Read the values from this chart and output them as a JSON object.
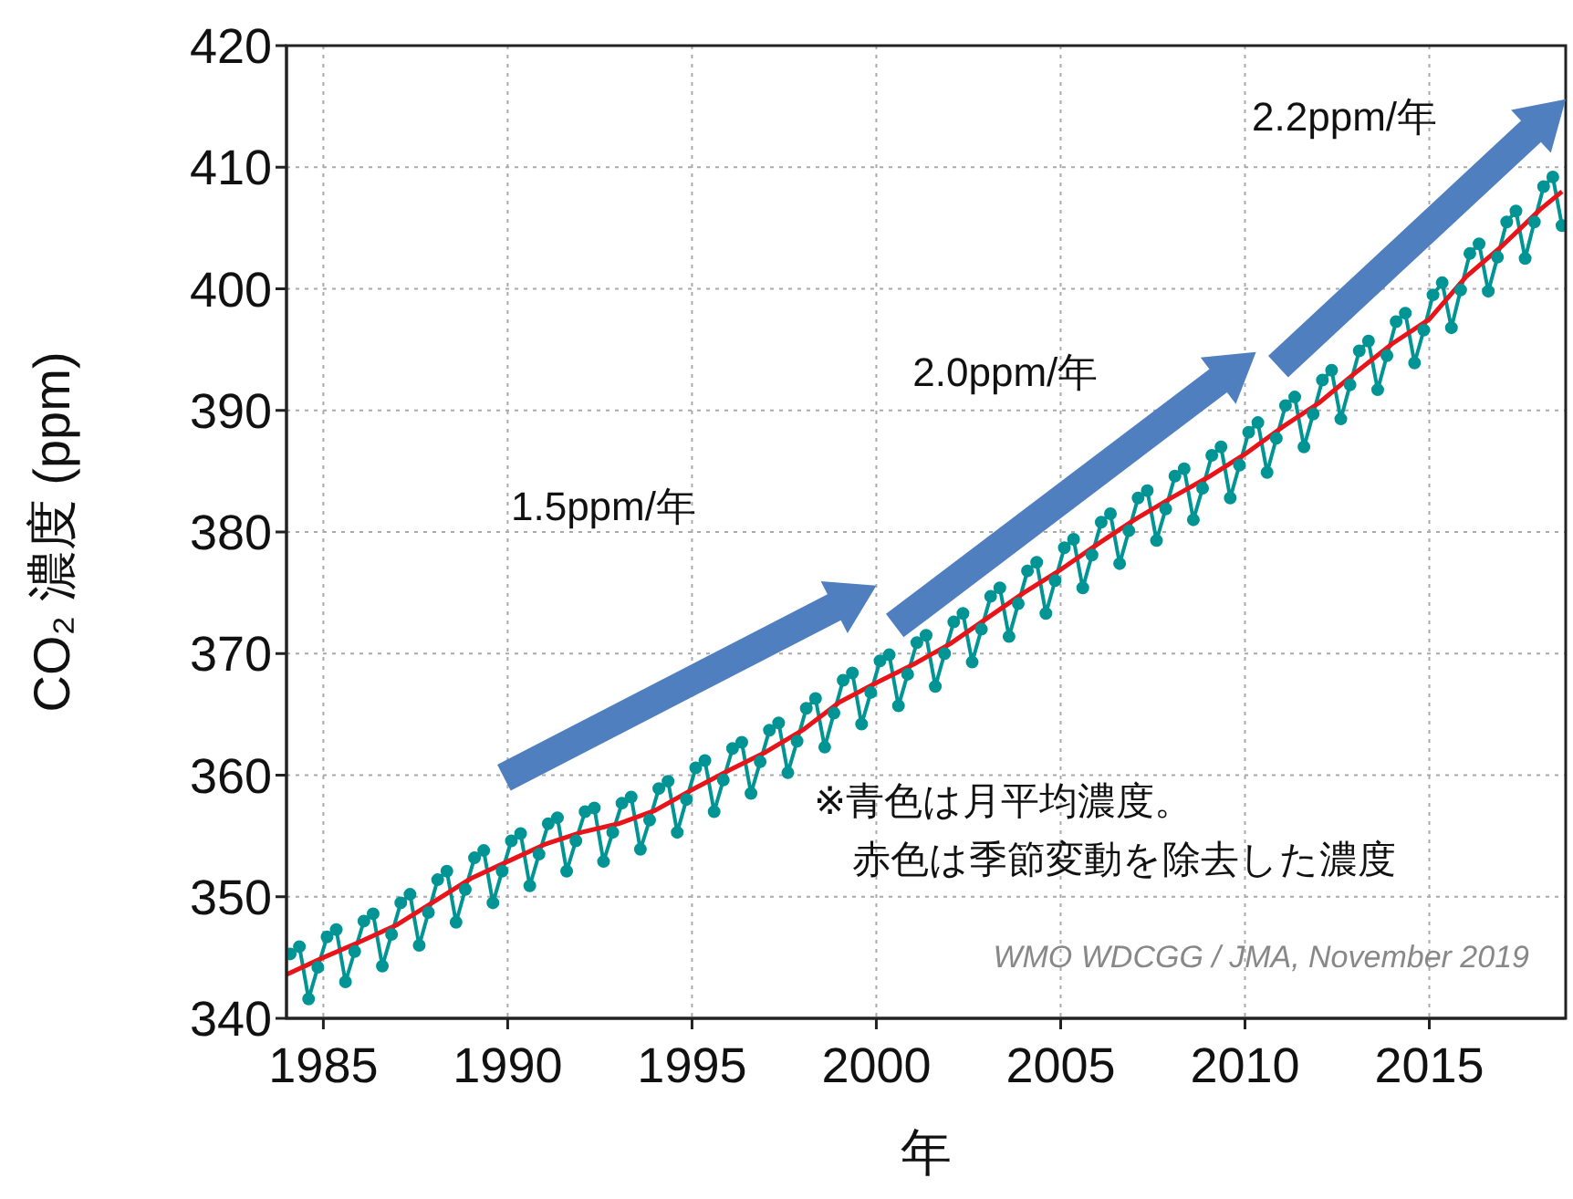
{
  "chart_data": {
    "type": "line",
    "xlabel": "年",
    "ylabel": "CO₂ 濃度 (ppm)",
    "xlim": [
      1984,
      2018.7
    ],
    "xticks": [
      1985,
      1990,
      1995,
      2000,
      2005,
      2010,
      2015
    ],
    "ylim": [
      340,
      420
    ],
    "yticks": [
      340,
      350,
      360,
      370,
      380,
      390,
      400,
      410,
      420
    ],
    "grid": true,
    "legend": false,
    "annotations": [
      "1.5ppm/年",
      "2.0ppm/年",
      "2.2ppm/年",
      "※青色は月平均濃度。",
      "赤色は季節変動を除去した濃度",
      "WMO WDCGG / JMA, November 2019"
    ],
    "series": [
      {
        "color": "#009494",
        "marker": "circle",
        "x": [
          1984.1,
          1984.35,
          1984.6,
          1984.85,
          1985.1,
          1985.35,
          1985.6,
          1985.85,
          1986.1,
          1986.35,
          1986.6,
          1986.85,
          1987.1,
          1987.35,
          1987.6,
          1987.85,
          1988.1,
          1988.35,
          1988.6,
          1988.85,
          1989.1,
          1989.35,
          1989.6,
          1989.85,
          1990.1,
          1990.35,
          1990.6,
          1990.85,
          1991.1,
          1991.35,
          1991.6,
          1991.85,
          1992.1,
          1992.35,
          1992.6,
          1992.85,
          1993.1,
          1993.35,
          1993.6,
          1993.85,
          1994.1,
          1994.35,
          1994.6,
          1994.85,
          1995.1,
          1995.35,
          1995.6,
          1995.85,
          1996.1,
          1996.35,
          1996.6,
          1996.85,
          1997.1,
          1997.35,
          1997.6,
          1997.85,
          1998.1,
          1998.35,
          1998.6,
          1998.85,
          1999.1,
          1999.35,
          1999.6,
          1999.85,
          2000.1,
          2000.35,
          2000.6,
          2000.85,
          2001.1,
          2001.35,
          2001.6,
          2001.85,
          2002.1,
          2002.35,
          2002.6,
          2002.85,
          2003.1,
          2003.35,
          2003.6,
          2003.85,
          2004.1,
          2004.35,
          2004.6,
          2004.85,
          2005.1,
          2005.35,
          2005.6,
          2005.85,
          2006.1,
          2006.35,
          2006.6,
          2006.85,
          2007.1,
          2007.35,
          2007.6,
          2007.85,
          2008.1,
          2008.35,
          2008.6,
          2008.85,
          2009.1,
          2009.35,
          2009.6,
          2009.85,
          2010.1,
          2010.35,
          2010.6,
          2010.85,
          2011.1,
          2011.35,
          2011.6,
          2011.85,
          2012.1,
          2012.35,
          2012.6,
          2012.85,
          2013.1,
          2013.35,
          2013.6,
          2013.85,
          2014.1,
          2014.35,
          2014.6,
          2014.85,
          2015.1,
          2015.35,
          2015.6,
          2015.85,
          2016.1,
          2016.35,
          2016.6,
          2016.85,
          2017.1,
          2017.35,
          2017.6,
          2017.85,
          2018.1,
          2018.35,
          2018.6
        ],
        "values": [
          345.3,
          345.9,
          341.6,
          344.2,
          346.7,
          347.3,
          343.0,
          345.5,
          348.0,
          348.6,
          344.3,
          346.9,
          349.5,
          350.2,
          346.0,
          348.7,
          351.4,
          352.1,
          347.9,
          350.6,
          353.2,
          353.8,
          349.5,
          352.1,
          354.6,
          355.2,
          350.9,
          353.5,
          356.0,
          356.5,
          352.1,
          354.6,
          357.0,
          357.3,
          352.9,
          355.3,
          357.7,
          358.2,
          353.9,
          356.3,
          358.9,
          359.5,
          355.3,
          358.0,
          360.6,
          361.2,
          357.0,
          359.6,
          362.2,
          362.7,
          358.5,
          361.1,
          363.7,
          364.3,
          360.2,
          362.8,
          365.5,
          366.3,
          362.3,
          365.1,
          367.8,
          368.4,
          364.2,
          366.8,
          369.4,
          369.9,
          365.7,
          368.3,
          370.9,
          371.5,
          367.3,
          370.0,
          372.6,
          373.3,
          369.3,
          372.0,
          374.7,
          375.4,
          371.4,
          374.1,
          376.8,
          377.5,
          373.3,
          376.0,
          378.7,
          379.4,
          375.4,
          378.1,
          380.8,
          381.5,
          377.4,
          380.1,
          382.8,
          383.4,
          379.3,
          381.9,
          384.6,
          385.2,
          381.0,
          383.6,
          386.3,
          387.0,
          382.8,
          385.5,
          388.2,
          389.0,
          384.9,
          387.7,
          390.4,
          391.1,
          387.0,
          389.7,
          392.5,
          393.3,
          389.3,
          392.1,
          394.9,
          395.7,
          391.7,
          394.5,
          397.3,
          398.0,
          393.9,
          396.6,
          399.5,
          400.5,
          396.8,
          399.9,
          402.9,
          403.7,
          399.8,
          402.6,
          405.5,
          406.4,
          402.5,
          405.5,
          408.4,
          409.2,
          405.2
        ]
      },
      {
        "color": "#e8141a",
        "marker": "none",
        "x": [
          1984,
          1985,
          1986,
          1987,
          1988,
          1989,
          1990,
          1991,
          1992,
          1993,
          1994,
          1995,
          1996,
          1997,
          1998,
          1999,
          2000,
          2001,
          2002,
          2003,
          2004,
          2005,
          2006,
          2007,
          2008,
          2009,
          2010,
          2011,
          2012,
          2013,
          2014,
          2015,
          2016,
          2017,
          2018,
          2018.6
        ],
        "values": [
          343.6,
          345.0,
          346.3,
          347.7,
          349.6,
          351.5,
          352.9,
          354.3,
          355.3,
          356.0,
          357.1,
          358.8,
          360.4,
          361.9,
          363.7,
          366.0,
          367.6,
          369.1,
          370.8,
          372.9,
          375.0,
          376.9,
          379.0,
          381.0,
          382.8,
          384.5,
          386.4,
          388.6,
          390.6,
          393.1,
          395.5,
          397.5,
          401.0,
          403.6,
          406.5,
          408.0
        ]
      }
    ]
  }
}
